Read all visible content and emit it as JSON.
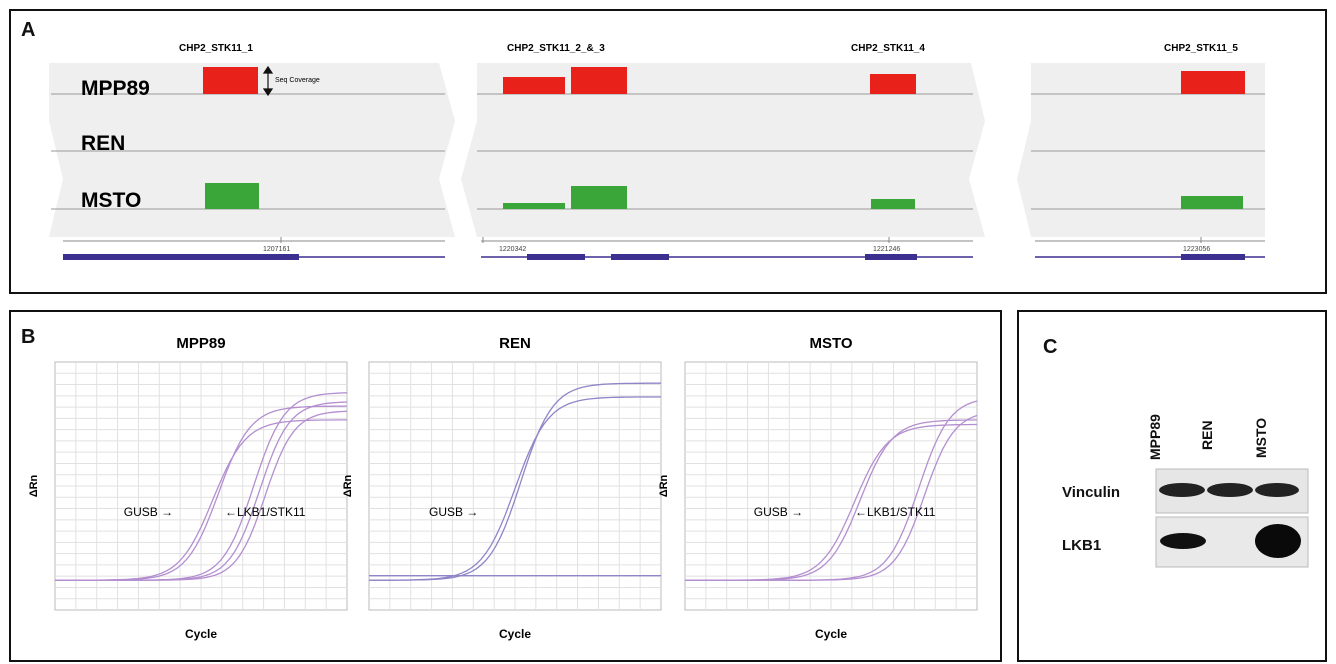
{
  "figure": {
    "panel_a": {
      "label": "A",
      "samples": [
        "MPP89",
        "REN",
        "MSTO"
      ],
      "segments": [
        {
          "headers": [
            "CHP2_STK11_1"
          ],
          "coords": [
            "1207161"
          ]
        },
        {
          "headers": [
            "CHP2_STK11_2_&_3",
            "CHP2_STK11_4"
          ],
          "coords": [
            "1220342",
            "1221246"
          ]
        },
        {
          "headers": [
            "CHP2_STK11_5"
          ],
          "coords": [
            "1223056"
          ]
        }
      ],
      "annotation": "Seq Coverage",
      "colors": {
        "MPP89": "#e8221a",
        "REN": "none",
        "MSTO": "#3aa63a",
        "gene_track": "#3b2f8f"
      }
    },
    "panel_b": {
      "label": "B",
      "plots": [
        {
          "title": "MPP89",
          "ylabel": "ΔRn",
          "xlabel": "Cycle",
          "left_arrow": "GUSB →",
          "right_arrow": "←LKB1/STK11"
        },
        {
          "title": "REN",
          "ylabel": "ΔRn",
          "xlabel": "Cycle",
          "left_arrow": "GUSB →",
          "right_arrow": ""
        },
        {
          "title": "MSTO",
          "ylabel": "ΔRn",
          "xlabel": "Cycle",
          "left_arrow": "GUSB →",
          "right_arrow": "←LKB1/STK11"
        }
      ],
      "curve_color": "#b48fd0"
    },
    "panel_c": {
      "label": "C",
      "lanes": [
        "MPP89",
        "REN",
        "MSTO"
      ],
      "rows": [
        "Vinculin",
        "LKB1"
      ]
    }
  }
}
